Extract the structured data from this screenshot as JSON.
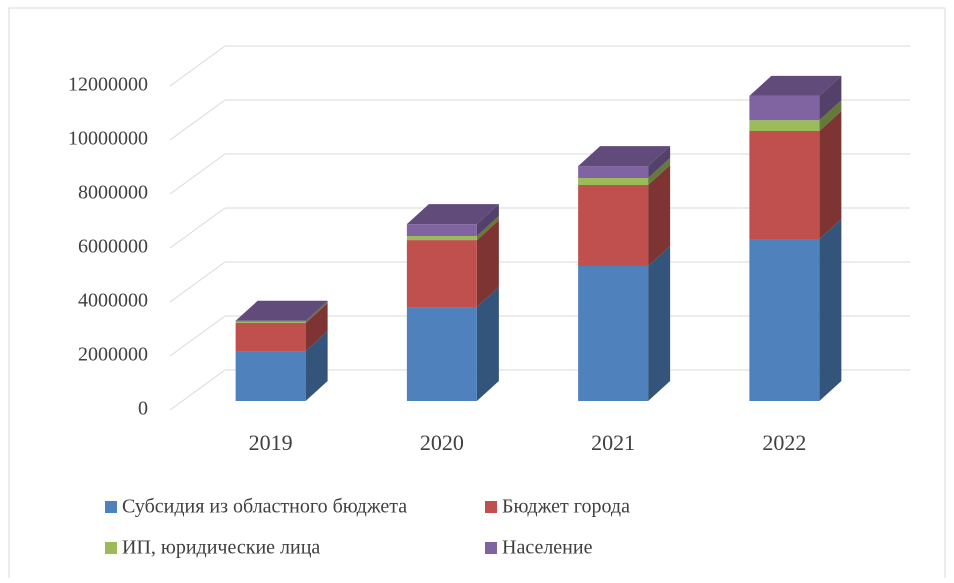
{
  "chart_data": {
    "type": "bar3d_stacked",
    "categories": [
      "2019",
      "2020",
      "2021",
      "2022"
    ],
    "series": [
      {
        "name": "Субсидия из областного бюджета",
        "color": "#4f81bd",
        "values": [
          1850000,
          3480000,
          5000000,
          6000000
        ]
      },
      {
        "name": "Бюджет города",
        "color": "#c0504d",
        "values": [
          1040000,
          2480000,
          3000000,
          4000000
        ]
      },
      {
        "name": "ИП, юридические лица",
        "color": "#9bbb59",
        "values": [
          50000,
          150000,
          260000,
          400000
        ]
      },
      {
        "name": "Население",
        "color": "#8064a2",
        "values": [
          30000,
          440000,
          440000,
          900000
        ]
      }
    ],
    "ylim": [
      0,
      12000000
    ],
    "yticks": [
      0,
      2000000,
      4000000,
      6000000,
      8000000,
      10000000,
      12000000
    ],
    "grid": true,
    "legend": "bottom"
  }
}
